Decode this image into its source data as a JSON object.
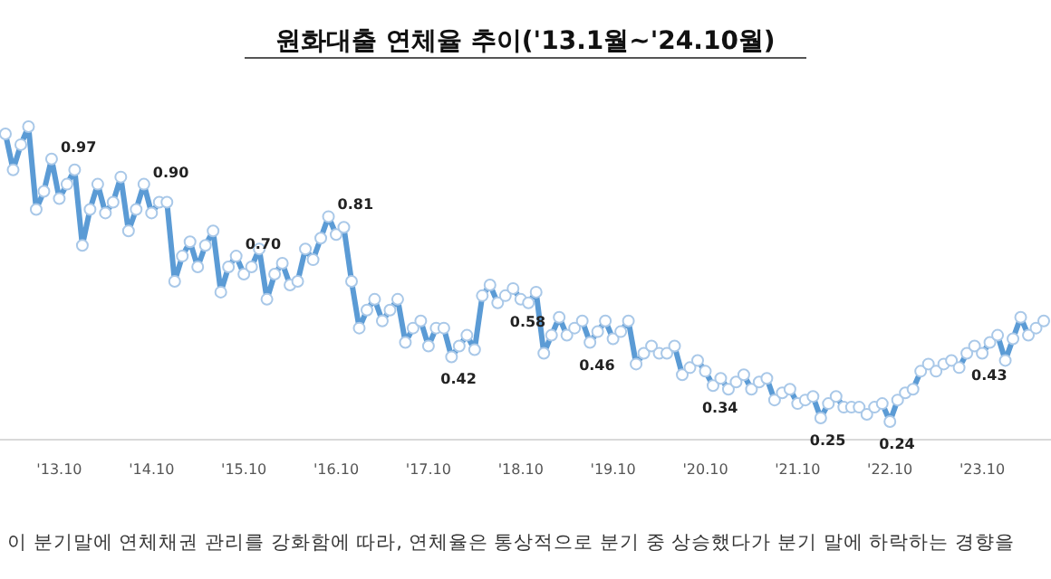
{
  "chart_data": {
    "type": "line",
    "title": "원화대출 연체율 추이('13.1월~'24.10월)",
    "categories": [
      null,
      null,
      null,
      null,
      null,
      null,
      null,
      "'13.10",
      null,
      null,
      null,
      null,
      null,
      null,
      null,
      null,
      null,
      null,
      null,
      "'14.10",
      null,
      null,
      null,
      null,
      null,
      null,
      null,
      null,
      null,
      null,
      null,
      "'15.10",
      null,
      null,
      null,
      null,
      null,
      null,
      null,
      null,
      null,
      null,
      null,
      "'16.10",
      null,
      null,
      null,
      null,
      null,
      null,
      null,
      null,
      null,
      null,
      null,
      "'17.10",
      null,
      null,
      null,
      null,
      null,
      null,
      null,
      null,
      null,
      null,
      null,
      "'18.10",
      null,
      null,
      null,
      null,
      null,
      null,
      null,
      null,
      null,
      null,
      null,
      "'19.10",
      null,
      null,
      null,
      null,
      null,
      null,
      null,
      null,
      null,
      null,
      null,
      "'20.10",
      null,
      null,
      null,
      null,
      null,
      null,
      null,
      null,
      null,
      null,
      null,
      "'21.10",
      null,
      null,
      null,
      null,
      null,
      null,
      null,
      null,
      null,
      null,
      null,
      "'22.10",
      null,
      null,
      null,
      null,
      null,
      null,
      null,
      null,
      null,
      null,
      null,
      "'23.10",
      null,
      null,
      null,
      null,
      null,
      null,
      null,
      null
    ],
    "series": [
      {
        "color": "#5b9bd5",
        "values": [
          1.04,
          0.94,
          1.01,
          1.06,
          0.83,
          0.88,
          0.97,
          0.86,
          0.9,
          0.94,
          0.73,
          0.83,
          0.9,
          0.82,
          0.85,
          0.92,
          0.77,
          0.83,
          0.9,
          0.82,
          0.85,
          0.85,
          0.63,
          0.7,
          0.74,
          0.67,
          0.73,
          0.77,
          0.6,
          0.67,
          0.7,
          0.65,
          0.67,
          0.72,
          0.58,
          0.65,
          0.68,
          0.62,
          0.63,
          0.72,
          0.69,
          0.75,
          0.81,
          0.76,
          0.78,
          0.63,
          0.5,
          0.55,
          0.58,
          0.52,
          0.55,
          0.58,
          0.46,
          0.5,
          0.52,
          0.45,
          0.5,
          0.5,
          0.42,
          0.45,
          0.48,
          0.44,
          0.59,
          0.62,
          0.57,
          0.59,
          0.61,
          0.58,
          0.57,
          0.6,
          0.43,
          0.48,
          0.53,
          0.48,
          0.5,
          0.52,
          0.46,
          0.49,
          0.52,
          0.47,
          0.49,
          0.52,
          0.4,
          0.43,
          0.45,
          0.43,
          0.43,
          0.45,
          0.37,
          0.39,
          0.41,
          0.38,
          0.34,
          0.36,
          0.33,
          0.35,
          0.37,
          0.33,
          0.35,
          0.36,
          0.3,
          0.32,
          0.33,
          0.29,
          0.3,
          0.31,
          0.25,
          0.29,
          0.31,
          0.28,
          0.28,
          0.28,
          0.26,
          0.28,
          0.29,
          0.24,
          0.3,
          0.32,
          0.33,
          0.38,
          0.4,
          0.38,
          0.4,
          0.41,
          0.39,
          0.43,
          0.45,
          0.43,
          0.46,
          0.48,
          0.41,
          0.47,
          0.53,
          0.48,
          0.5,
          0.52
        ],
        "value_labels": [
          null,
          null,
          null,
          null,
          null,
          null,
          "0.97",
          null,
          null,
          null,
          null,
          null,
          null,
          null,
          null,
          null,
          null,
          null,
          "0.90",
          null,
          null,
          null,
          null,
          null,
          null,
          null,
          null,
          null,
          null,
          null,
          "0.70",
          null,
          null,
          null,
          null,
          null,
          null,
          null,
          null,
          null,
          null,
          null,
          "0.81",
          null,
          null,
          null,
          null,
          null,
          null,
          null,
          null,
          null,
          null,
          null,
          null,
          null,
          null,
          null,
          "0.42",
          null,
          null,
          null,
          null,
          null,
          null,
          null,
          null,
          "0.58",
          null,
          null,
          null,
          null,
          null,
          null,
          null,
          null,
          "0.46",
          null,
          null,
          null,
          null,
          null,
          null,
          null,
          null,
          null,
          null,
          null,
          null,
          null,
          null,
          null,
          "0.34",
          null,
          null,
          null,
          null,
          null,
          null,
          null,
          null,
          null,
          null,
          null,
          null,
          null,
          "0.25",
          null,
          null,
          null,
          null,
          null,
          null,
          null,
          null,
          "0.24",
          null,
          null,
          null,
          null,
          null,
          null,
          null,
          null,
          null,
          null,
          null,
          "0.43",
          null,
          null,
          null,
          null,
          null,
          null,
          null,
          null
        ]
      }
    ],
    "marker": "circle",
    "line_style": "solid",
    "annotations": [
      "이 분기말에 연체채권 관리를 강화함에 따라, 연체율은 통상적으로 분기 중 상승했다가 분기 말에 하락하는 경향을"
    ]
  }
}
